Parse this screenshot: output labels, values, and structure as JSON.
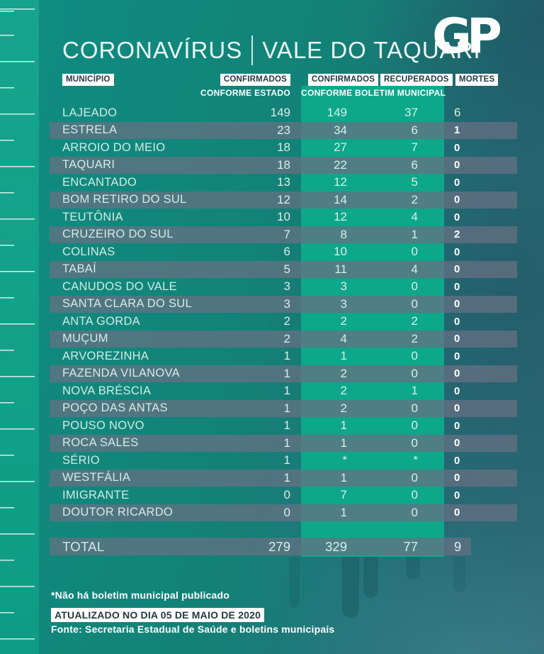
{
  "title": {
    "part1": "CORONAVÍRUS",
    "part2": "VALE DO TAQUARI"
  },
  "logo": {
    "text": "GP"
  },
  "table": {
    "headers": {
      "municipio": "MUNICÍPIO",
      "confirmados_estado": "CONFIRMADOS",
      "confirmados_municipal": "CONFIRMADOS",
      "recuperados": "RECUPERADOS",
      "mortes": "MORTES",
      "sub_estado": "CONFORME ESTADO",
      "sub_municipal": "CONFORME BOLETIM MUNICIPAL"
    },
    "rows": [
      {
        "municipio": "LAJEADO",
        "confirmados_estado": "149",
        "confirmados_municipal": "149",
        "recuperados": "37",
        "mortes": "6"
      },
      {
        "municipio": "ESTRELA",
        "confirmados_estado": "23",
        "confirmados_municipal": "34",
        "recuperados": "6",
        "mortes": "1"
      },
      {
        "municipio": "ARROIO DO MEIO",
        "confirmados_estado": "18",
        "confirmados_municipal": "27",
        "recuperados": "7",
        "mortes": "0"
      },
      {
        "municipio": "TAQUARI",
        "confirmados_estado": "18",
        "confirmados_municipal": "22",
        "recuperados": "6",
        "mortes": "0"
      },
      {
        "municipio": "ENCANTADO",
        "confirmados_estado": "13",
        "confirmados_municipal": "12",
        "recuperados": "5",
        "mortes": "0"
      },
      {
        "municipio": "BOM RETIRO DO SUL",
        "confirmados_estado": "12",
        "confirmados_municipal": "14",
        "recuperados": "2",
        "mortes": "0"
      },
      {
        "municipio": "TEUTÔNIA",
        "confirmados_estado": "10",
        "confirmados_municipal": "12",
        "recuperados": "4",
        "mortes": "0"
      },
      {
        "municipio": "CRUZEIRO DO SUL",
        "confirmados_estado": "7",
        "confirmados_municipal": "8",
        "recuperados": "1",
        "mortes": "2"
      },
      {
        "municipio": "COLINAS",
        "confirmados_estado": "6",
        "confirmados_municipal": "10",
        "recuperados": "0",
        "mortes": "0"
      },
      {
        "municipio": "TABAÍ",
        "confirmados_estado": "5",
        "confirmados_municipal": "11",
        "recuperados": "4",
        "mortes": "0"
      },
      {
        "municipio": "CANUDOS DO VALE",
        "confirmados_estado": "3",
        "confirmados_municipal": "3",
        "recuperados": "0",
        "mortes": "0"
      },
      {
        "municipio": "SANTA CLARA DO SUL",
        "confirmados_estado": "3",
        "confirmados_municipal": "3",
        "recuperados": "0",
        "mortes": "0"
      },
      {
        "municipio": "ANTA GORDA",
        "confirmados_estado": "2",
        "confirmados_municipal": "2",
        "recuperados": "2",
        "mortes": "0"
      },
      {
        "municipio": "MUÇUM",
        "confirmados_estado": "2",
        "confirmados_municipal": "4",
        "recuperados": "2",
        "mortes": "0"
      },
      {
        "municipio": "ARVOREZINHA",
        "confirmados_estado": "1",
        "confirmados_municipal": "1",
        "recuperados": "0",
        "mortes": "0"
      },
      {
        "municipio": "FAZENDA VILANOVA",
        "confirmados_estado": "1",
        "confirmados_municipal": "2",
        "recuperados": "0",
        "mortes": "0"
      },
      {
        "municipio": "NOVA BRÉSCIA",
        "confirmados_estado": "1",
        "confirmados_municipal": "2",
        "recuperados": "1",
        "mortes": "0"
      },
      {
        "municipio": "POÇO DAS ANTAS",
        "confirmados_estado": "1",
        "confirmados_municipal": "2",
        "recuperados": "0",
        "mortes": "0"
      },
      {
        "municipio": "POUSO NOVO",
        "confirmados_estado": "1",
        "confirmados_municipal": "1",
        "recuperados": "0",
        "mortes": "0"
      },
      {
        "municipio": "ROCA SALES",
        "confirmados_estado": "1",
        "confirmados_municipal": "1",
        "recuperados": "0",
        "mortes": "0"
      },
      {
        "municipio": "SÉRIO",
        "confirmados_estado": "1",
        "confirmados_municipal": "*",
        "recuperados": "*",
        "mortes": "0"
      },
      {
        "municipio": "WESTFÁLIA",
        "confirmados_estado": "1",
        "confirmados_municipal": "1",
        "recuperados": "0",
        "mortes": "0"
      },
      {
        "municipio": "IMIGRANTE",
        "confirmados_estado": "0",
        "confirmados_municipal": "7",
        "recuperados": "0",
        "mortes": "0"
      },
      {
        "municipio": "DOUTOR RICARDO",
        "confirmados_estado": "0",
        "confirmados_municipal": "1",
        "recuperados": "0",
        "mortes": "0"
      }
    ],
    "total": {
      "label": "TOTAL",
      "confirmados_estado": "279",
      "confirmados_municipal": "329",
      "recuperados": "77",
      "mortes": "9"
    }
  },
  "footer": {
    "footnote": "*Não há boletim municipal publicado",
    "updated": "ATUALIZADO NO DIA 05 DE MAIO DE 2020",
    "source": "Fonte: Secretaria Estadual de Saúde e boletins municipais"
  },
  "colors": {
    "band_green": "#0da78b",
    "strip_green": "#16a48e",
    "stripe_gray": "rgba(101,112,131,0.75)",
    "badge_bg": "#ffffff",
    "badge_text": "#223941",
    "bg_left": "#0f8d82",
    "bg_right": "#2f6f7a",
    "text_light": "#d9efe9"
  },
  "chart_data": {
    "type": "table",
    "title": "CORONAVÍRUS | VALE DO TAQUARI",
    "columns": [
      "MUNICÍPIO",
      "CONFIRMADOS CONFORME ESTADO",
      "CONFIRMADOS CONFORME BOLETIM MUNICIPAL",
      "RECUPERADOS CONFORME BOLETIM MUNICIPAL",
      "MORTES"
    ],
    "rows": [
      [
        "LAJEADO",
        149,
        149,
        37,
        6
      ],
      [
        "ESTRELA",
        23,
        34,
        6,
        1
      ],
      [
        "ARROIO DO MEIO",
        18,
        27,
        7,
        0
      ],
      [
        "TAQUARI",
        18,
        22,
        6,
        0
      ],
      [
        "ENCANTADO",
        13,
        12,
        5,
        0
      ],
      [
        "BOM RETIRO DO SUL",
        12,
        14,
        2,
        0
      ],
      [
        "TEUTÔNIA",
        10,
        12,
        4,
        0
      ],
      [
        "CRUZEIRO DO SUL",
        7,
        8,
        1,
        2
      ],
      [
        "COLINAS",
        6,
        10,
        0,
        0
      ],
      [
        "TABAÍ",
        5,
        11,
        4,
        0
      ],
      [
        "CANUDOS DO VALE",
        3,
        3,
        0,
        0
      ],
      [
        "SANTA CLARA DO SUL",
        3,
        3,
        0,
        0
      ],
      [
        "ANTA GORDA",
        2,
        2,
        2,
        0
      ],
      [
        "MUÇUM",
        2,
        4,
        2,
        0
      ],
      [
        "ARVOREZINHA",
        1,
        1,
        0,
        0
      ],
      [
        "FAZENDA VILANOVA",
        1,
        2,
        0,
        0
      ],
      [
        "NOVA BRÉSCIA",
        1,
        2,
        1,
        0
      ],
      [
        "POÇO DAS ANTAS",
        1,
        2,
        0,
        0
      ],
      [
        "POUSO NOVO",
        1,
        1,
        0,
        0
      ],
      [
        "ROCA SALES",
        1,
        1,
        0,
        0
      ],
      [
        "SÉRIO",
        1,
        "*",
        "*",
        0
      ],
      [
        "WESTFÁLIA",
        1,
        1,
        0,
        0
      ],
      [
        "IMIGRANTE",
        0,
        7,
        0,
        0
      ],
      [
        "DOUTOR RICARDO",
        0,
        1,
        0,
        0
      ]
    ],
    "total_row": [
      "TOTAL",
      279,
      329,
      77,
      9
    ],
    "footnote": "*Não há boletim municipal publicado"
  }
}
